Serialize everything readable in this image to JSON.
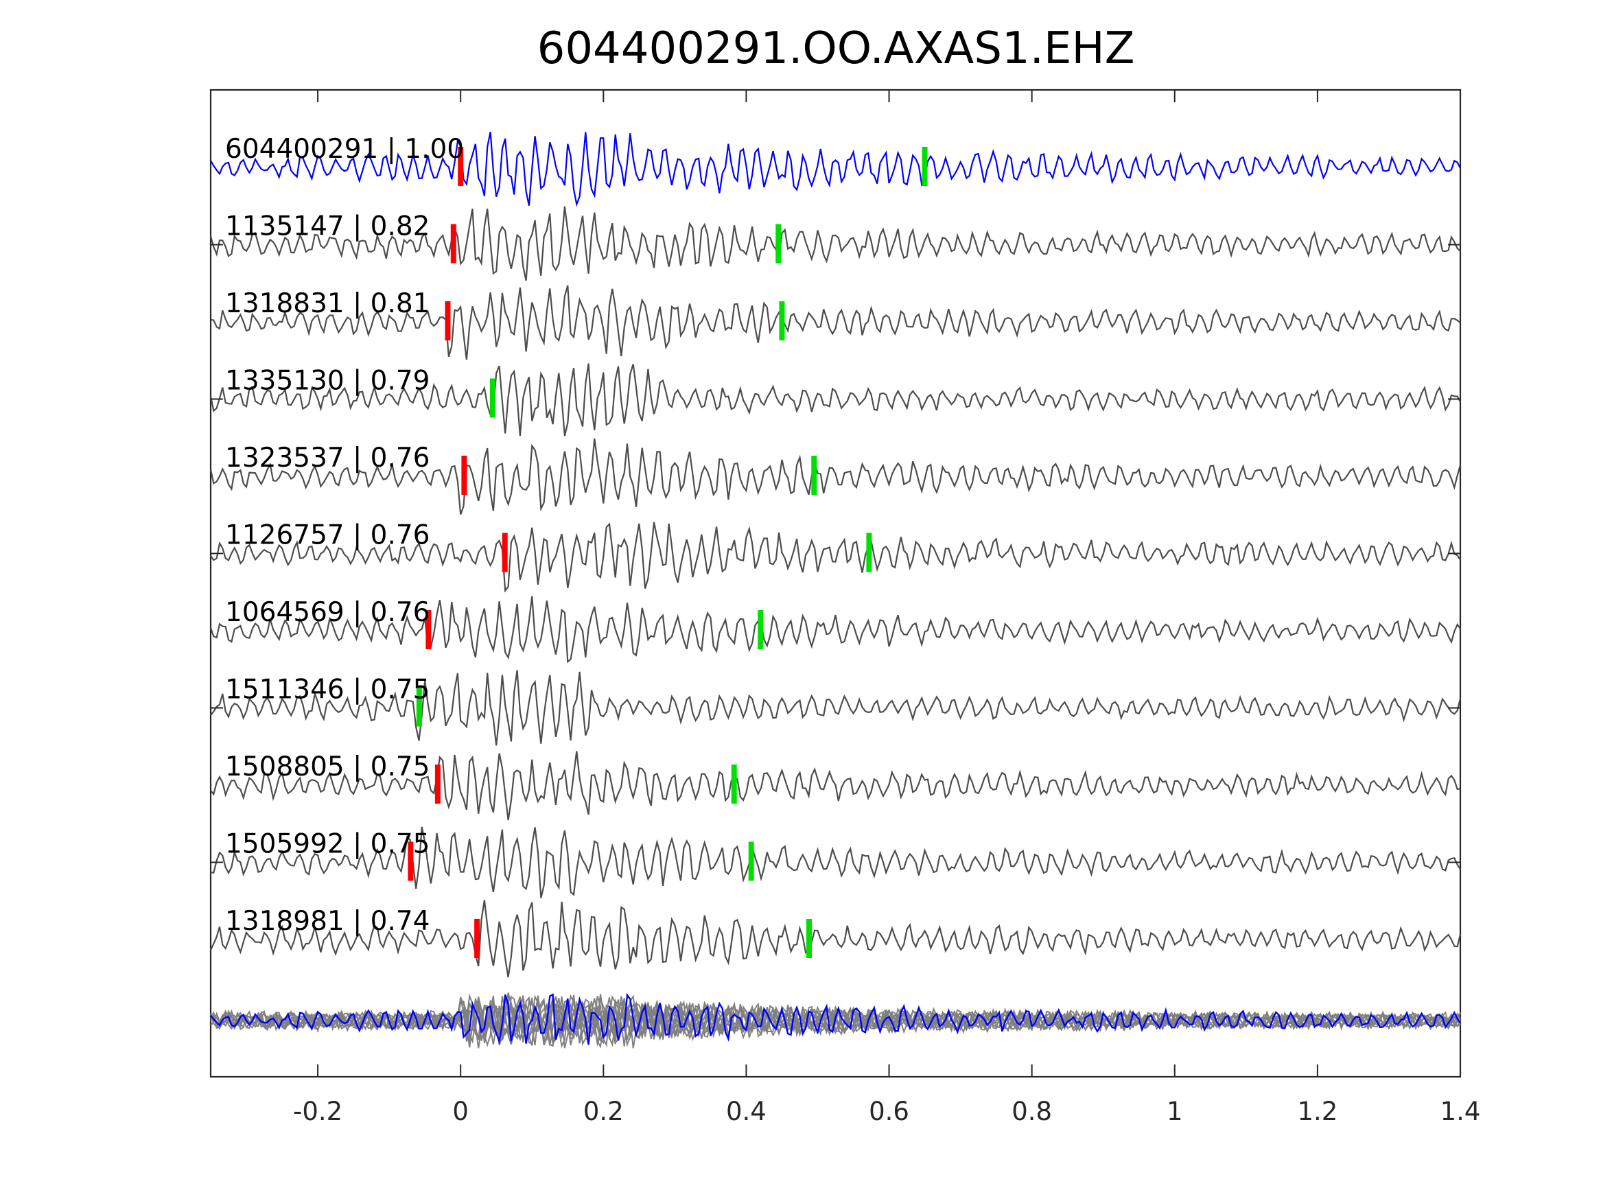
{
  "chart_data": {
    "type": "line",
    "title": "604400291.OO.AXAS1.EHZ",
    "xlabel": "",
    "ylabel": "",
    "xlim": [
      -0.35,
      1.4
    ],
    "x_ticks": [
      -0.2,
      0,
      0.2,
      0.4,
      0.6,
      0.8,
      1,
      1.2,
      1.4
    ],
    "x_tick_labels": [
      "-0.2",
      "0",
      "0.2",
      "0.4",
      "0.6",
      "0.8",
      "1",
      "1.2",
      "1.4"
    ],
    "grid": false,
    "colors": {
      "reference_trace": "#0000ff",
      "similar_trace": "#4d4d4d",
      "stack_trace": "#808080",
      "p_pick": "#ff0000",
      "s_pick": "#00e000",
      "axes": "#262626"
    },
    "traces": [
      {
        "id": "604400291",
        "cc": "1.00",
        "label": "604400291 | 1.00",
        "reference": true,
        "p_pick": 0.0,
        "s_pick": 0.65
      },
      {
        "id": "1135147",
        "cc": "0.82",
        "label": "1135147 | 0.82",
        "reference": false,
        "p_pick": -0.01,
        "s_pick": 0.445
      },
      {
        "id": "1318831",
        "cc": "0.81",
        "label": "1318831 | 0.81",
        "reference": false,
        "p_pick": -0.018,
        "s_pick": 0.45
      },
      {
        "id": "1335130",
        "cc": "0.79",
        "label": "1335130 | 0.79",
        "reference": false,
        "p_pick": null,
        "s_pick": 0.045
      },
      {
        "id": "1323537",
        "cc": "0.76",
        "label": "1323537 | 0.76",
        "reference": false,
        "p_pick": 0.005,
        "s_pick": 0.495
      },
      {
        "id": "1126757",
        "cc": "0.76",
        "label": "1126757 | 0.76",
        "reference": false,
        "p_pick": 0.062,
        "s_pick": 0.572
      },
      {
        "id": "1064569",
        "cc": "0.76",
        "label": "1064569 | 0.76",
        "reference": false,
        "p_pick": -0.045,
        "s_pick": 0.42
      },
      {
        "id": "1511346",
        "cc": "0.75",
        "label": "1511346 | 0.75",
        "reference": false,
        "p_pick": null,
        "s_pick": -0.058
      },
      {
        "id": "1508805",
        "cc": "0.75",
        "label": "1508805 | 0.75",
        "reference": false,
        "p_pick": -0.032,
        "s_pick": 0.383
      },
      {
        "id": "1505992",
        "cc": "0.75",
        "label": "1505992 | 0.75",
        "reference": false,
        "p_pick": -0.07,
        "s_pick": 0.407
      },
      {
        "id": "1318981",
        "cc": "0.74",
        "label": "1318981 | 0.74",
        "reference": false,
        "p_pick": 0.023,
        "s_pick": 0.488
      }
    ],
    "overlay": {
      "description_in_chart": false,
      "reference_color": "#0000ff",
      "others_color": "#808080"
    }
  }
}
